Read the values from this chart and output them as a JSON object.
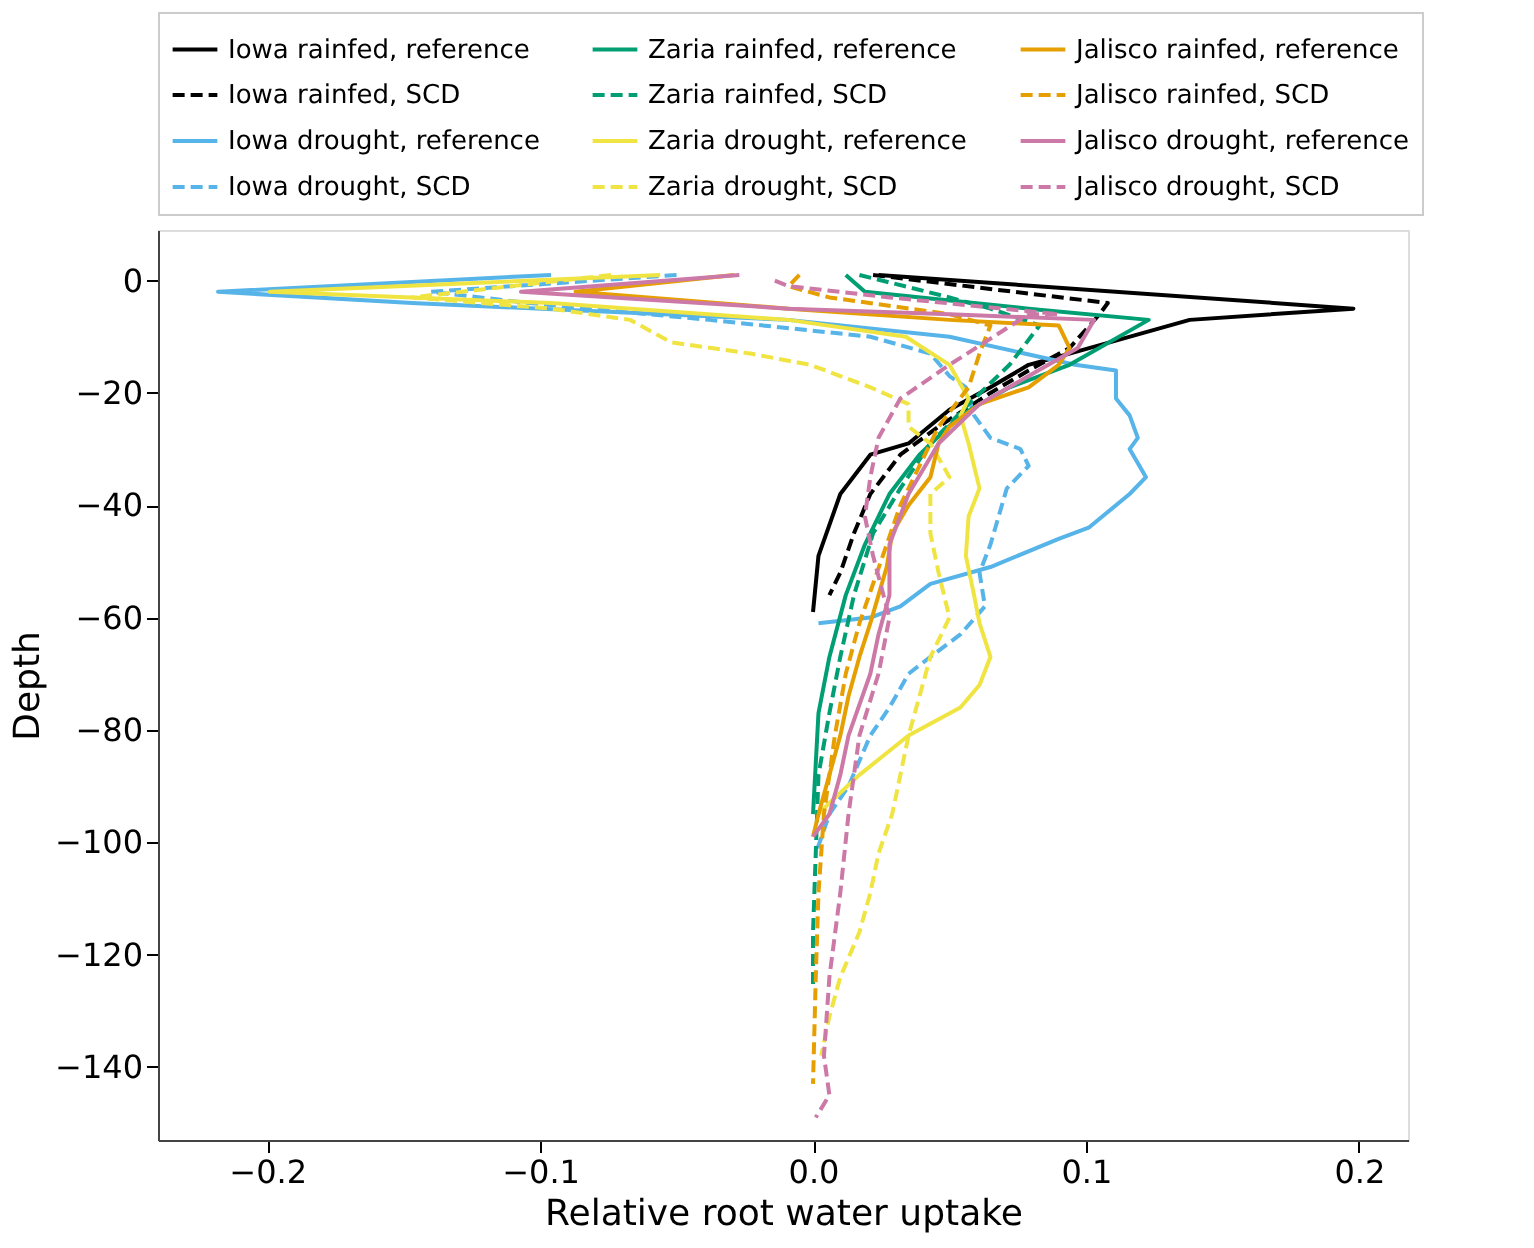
{
  "chart_data": {
    "type": "line",
    "xlabel": "Relative root water uptake",
    "ylabel": "Depth",
    "xlim": [
      -0.24,
      0.218
    ],
    "ylim": [
      -153,
      9
    ],
    "xticks": [
      {
        "value": -0.2,
        "label": "−0.2"
      },
      {
        "value": -0.1,
        "label": "−0.1"
      },
      {
        "value": 0,
        "label": "0.0"
      },
      {
        "value": 0.1,
        "label": "0.1"
      },
      {
        "value": 0.2,
        "label": "0.2"
      }
    ],
    "yticks": [
      0,
      {
        "value": -20,
        "label": "−20"
      },
      {
        "value": -40,
        "label": "−40"
      },
      {
        "value": -60,
        "label": "−60"
      },
      {
        "value": -80,
        "label": "−80"
      },
      {
        "value": -100,
        "label": "−100"
      },
      {
        "value": -120,
        "label": "−120"
      },
      {
        "value": -140,
        "label": "−140"
      }
    ],
    "grid": false,
    "legend": "top",
    "marker": "none",
    "series": [
      {
        "name": "Iowa rainfed, reference",
        "color": "#000000",
        "line_style": "solid",
        "x": [
          0.024,
          0.198,
          0.138,
          0.094,
          0.079,
          0.065,
          0.05,
          0.035,
          0.021,
          0.01,
          0.002,
          0.0
        ],
        "values": [
          1,
          -5,
          -7,
          -13,
          -15,
          -19,
          -23,
          -29,
          -31,
          -38,
          -49,
          -59
        ]
      },
      {
        "name": "Iowa rainfed, SCD",
        "color": "#000000",
        "line_style": "dashed",
        "x": [
          0.022,
          0.108,
          0.105,
          0.094,
          0.079,
          0.065,
          0.046,
          0.032,
          0.021,
          0.015,
          0.01,
          0.006
        ],
        "values": [
          1,
          -4,
          -6,
          -12,
          -16,
          -20,
          -26,
          -31,
          -38,
          -45,
          -52,
          -56
        ]
      },
      {
        "name": "Iowa drought, reference",
        "color": "#56b4e9",
        "line_style": "solid",
        "x": [
          -0.096,
          -0.218,
          -0.147,
          -0.009,
          0.05,
          0.096,
          0.111,
          0.111,
          0.116,
          0.119,
          0.116,
          0.122,
          0.116,
          0.101,
          0.09,
          0.065,
          0.043,
          0.032,
          0.021,
          0.002
        ],
        "values": [
          1,
          -2,
          -4,
          -7,
          -10,
          -15,
          -16,
          -21,
          -24,
          -28,
          -30,
          -35,
          -38,
          -44,
          -46,
          -51,
          -54,
          -58,
          -60,
          -61
        ]
      },
      {
        "name": "Iowa drought, SCD",
        "color": "#56b4e9",
        "line_style": "dashed",
        "x": [
          -0.05,
          -0.14,
          -0.104,
          -0.038,
          0.021,
          0.043,
          0.05,
          0.056,
          0.059,
          0.065,
          0.076,
          0.079,
          0.071,
          0.068,
          0.065,
          0.061,
          0.063,
          0.054,
          0.043,
          0.035,
          0.028,
          0.021,
          0.013,
          0.006,
          0.001
        ],
        "values": [
          1,
          -2,
          -4,
          -7,
          -10,
          -13,
          -17,
          -19,
          -24,
          -28,
          -30,
          -33,
          -37,
          -42,
          -47,
          -52,
          -58,
          -63,
          -67,
          -70,
          -76,
          -81,
          -90,
          -95,
          -102
        ]
      },
      {
        "name": "Zaria rainfed, reference",
        "color": "#009e73",
        "line_style": "solid",
        "x": [
          0.012,
          0.019,
          0.079,
          0.123,
          0.094,
          0.072,
          0.054,
          0.039,
          0.028,
          0.019,
          0.012,
          0.006,
          0.002,
          0.0
        ],
        "values": [
          1,
          -2,
          -5,
          -7,
          -15,
          -19,
          -24,
          -31,
          -38,
          -47,
          -56,
          -67,
          -77,
          -95
        ]
      },
      {
        "name": "Zaria rainfed, SCD",
        "color": "#009e73",
        "line_style": "dashed",
        "x": [
          0.017,
          0.05,
          0.065,
          0.083,
          0.072,
          0.057,
          0.043,
          0.032,
          0.022,
          0.015,
          0.01,
          0.006,
          0.002,
          0.001,
          0.0,
          0.0
        ],
        "values": [
          1,
          -3,
          -5,
          -8,
          -15,
          -22,
          -29,
          -37,
          -45,
          -56,
          -67,
          -77,
          -88,
          -102,
          -116,
          -126
        ]
      },
      {
        "name": "Zaria drought, reference",
        "color": "#f0e442",
        "line_style": "solid",
        "x": [
          -0.056,
          -0.199,
          -0.096,
          -0.009,
          0.034,
          0.05,
          0.057,
          0.054,
          0.057,
          0.061,
          0.057,
          0.056,
          0.059,
          0.061,
          0.065,
          0.061,
          0.054,
          0.035,
          0.017,
          0.006,
          0.002
        ],
        "values": [
          1,
          -2,
          -4,
          -7,
          -10,
          -15,
          -21,
          -24,
          -29,
          -37,
          -42,
          -49,
          -56,
          -61,
          -67,
          -72,
          -76,
          -81,
          -88,
          -93,
          -95
        ]
      },
      {
        "name": "Zaria drought, SCD",
        "color": "#f0e442",
        "line_style": "dashed",
        "x": [
          -0.074,
          -0.147,
          -0.096,
          -0.067,
          -0.052,
          -0.023,
          -0.001,
          0.021,
          0.035,
          0.035,
          0.043,
          0.05,
          0.043,
          0.043,
          0.046,
          0.05,
          0.043,
          0.039,
          0.035,
          0.032,
          0.029,
          0.024,
          0.021,
          0.017,
          0.01,
          0.006,
          0.003
        ],
        "values": [
          1,
          -3,
          -5,
          -7,
          -11,
          -13,
          -15,
          -19,
          -22,
          -26,
          -29,
          -35,
          -38,
          -45,
          -52,
          -60,
          -67,
          -74,
          -81,
          -88,
          -95,
          -102,
          -109,
          -116,
          -124,
          -131,
          -138
        ]
      },
      {
        "name": "Jalisco rainfed, reference",
        "color": "#e69f00",
        "line_style": "solid",
        "x": [
          -0.029,
          -0.087,
          -0.009,
          0.05,
          0.09,
          0.094,
          0.09,
          0.079,
          0.061,
          0.05,
          0.046,
          0.043,
          0.035,
          0.029,
          0.027,
          0.024,
          0.021,
          0.017,
          0.013,
          0.01,
          0.006,
          0.002,
          0.0
        ],
        "values": [
          1,
          -2,
          -5,
          -7,
          -8,
          -12,
          -15,
          -19,
          -22,
          -26,
          -29,
          -35,
          -40,
          -45,
          -51,
          -56,
          -61,
          -67,
          -74,
          -81,
          -88,
          -95,
          -99
        ]
      },
      {
        "name": "Jalisco rainfed, SCD",
        "color": "#e69f00",
        "line_style": "dashed",
        "x": [
          -0.005,
          -0.009,
          0.006,
          0.05,
          0.065,
          0.061,
          0.057,
          0.046,
          0.039,
          0.032,
          0.027,
          0.022,
          0.017,
          0.012,
          0.008,
          0.004,
          0.002,
          0.001,
          0.0
        ],
        "values": [
          1,
          -1,
          -3,
          -6,
          -8,
          -13,
          -19,
          -26,
          -33,
          -40,
          -47,
          -54,
          -61,
          -70,
          -81,
          -95,
          -109,
          -124,
          -143
        ]
      },
      {
        "name": "Jalisco drought, reference",
        "color": "#cc79a7",
        "line_style": "solid",
        "x": [
          -0.027,
          -0.107,
          -0.009,
          0.05,
          0.103,
          0.097,
          0.079,
          0.061,
          0.046,
          0.035,
          0.028,
          0.028,
          0.024,
          0.021,
          0.013,
          0.01,
          0.006,
          0.0
        ],
        "values": [
          1,
          -2,
          -5,
          -6,
          -7,
          -12,
          -17,
          -22,
          -29,
          -38,
          -47,
          -56,
          -63,
          -70,
          -81,
          -88,
          -95,
          -99
        ]
      },
      {
        "name": "Jalisco drought, SCD",
        "color": "#cc79a7",
        "line_style": "dashed",
        "x": [
          -0.014,
          -0.009,
          0.028,
          0.09,
          0.079,
          0.05,
          0.032,
          0.024,
          0.021,
          0.019,
          0.022,
          0.028,
          0.024,
          0.017,
          0.013,
          0.01,
          0.006,
          0.004,
          0.006,
          0.001
        ],
        "values": [
          0,
          -1,
          -3,
          -6,
          -6,
          -15,
          -21,
          -28,
          -35,
          -42,
          -49,
          -60,
          -70,
          -81,
          -95,
          -109,
          -124,
          -138,
          -145,
          -149
        ]
      }
    ]
  }
}
